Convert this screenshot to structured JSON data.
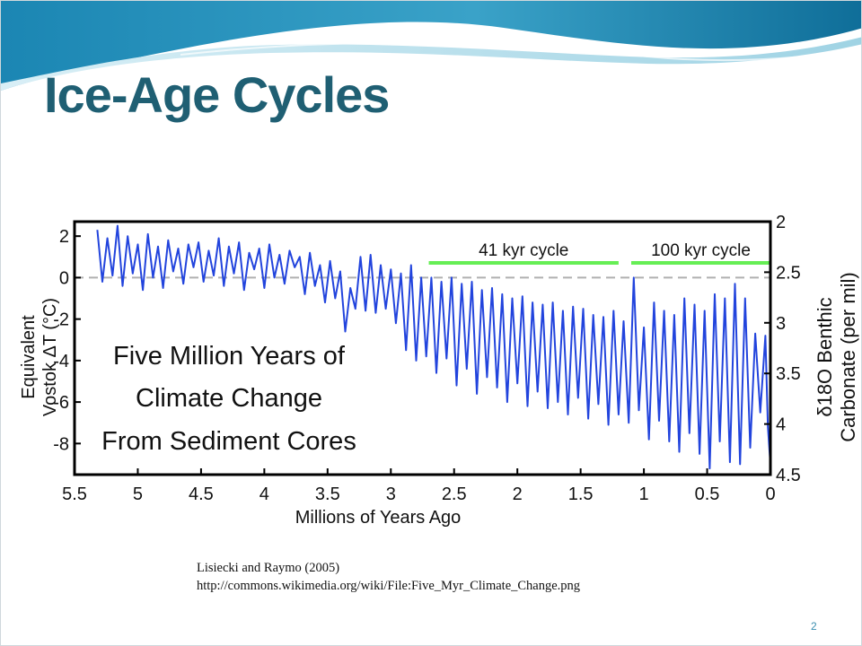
{
  "slide": {
    "title": "Ice-Age Cycles",
    "credit_line1": "Lisiecki and Raymo (2005)",
    "credit_line2": "http://commons.wikimedia.org/wiki/File:Five_Myr_Climate_Change.png",
    "page_number": "2",
    "colors": {
      "title": "#1f5f73",
      "header_wave": "#1b86b3",
      "header_light": "#bfe3ee"
    }
  },
  "chart_data": {
    "type": "line",
    "title_lines": [
      "Five Million Years of",
      "Climate Change",
      "From Sediment Cores"
    ],
    "xlabel": "Millions of Years Ago",
    "ylabel_left_lines": [
      "Equivalent",
      "Vostok ΔT (°C)"
    ],
    "ylabel_right_lines": [
      "δ18O Benthic",
      "Carbonate (per mil)"
    ],
    "xlim": [
      5.5,
      0
    ],
    "ylim_left": [
      -9.5,
      2.7
    ],
    "ylim_right": [
      4.5,
      2
    ],
    "x_ticks": [
      "5.5",
      "5",
      "4.5",
      "4",
      "3.5",
      "3",
      "2.5",
      "2",
      "1.5",
      "1",
      "0.5",
      "0"
    ],
    "y_left_ticks": [
      "2",
      "0",
      "-2",
      "-4",
      "-6",
      "-8"
    ],
    "y_right_ticks": [
      "2",
      "2.5",
      "3",
      "3.5",
      "4",
      "4.5"
    ],
    "reference_line": {
      "y": 0,
      "style": "dashed",
      "color": "#b0b0b0"
    },
    "annotations": [
      {
        "label": "41 kyr cycle",
        "x_start": 2.7,
        "x_end": 1.2,
        "color": "#66ee55"
      },
      {
        "label": "100 kyr cycle",
        "x_start": 1.1,
        "x_end": 0,
        "color": "#66ee55"
      }
    ],
    "series": [
      {
        "color": "#2244dd",
        "x": [
          5.32,
          5.28,
          5.24,
          5.2,
          5.16,
          5.12,
          5.08,
          5.04,
          5.0,
          4.96,
          4.92,
          4.88,
          4.84,
          4.8,
          4.76,
          4.72,
          4.68,
          4.64,
          4.6,
          4.56,
          4.52,
          4.48,
          4.44,
          4.4,
          4.36,
          4.32,
          4.28,
          4.24,
          4.2,
          4.16,
          4.12,
          4.08,
          4.04,
          4.0,
          3.96,
          3.92,
          3.88,
          3.84,
          3.8,
          3.76,
          3.72,
          3.68,
          3.64,
          3.6,
          3.56,
          3.52,
          3.48,
          3.44,
          3.4,
          3.36,
          3.32,
          3.28,
          3.24,
          3.2,
          3.16,
          3.12,
          3.08,
          3.04,
          3.0,
          2.96,
          2.92,
          2.88,
          2.84,
          2.8,
          2.76,
          2.72,
          2.68,
          2.64,
          2.6,
          2.56,
          2.52,
          2.48,
          2.44,
          2.4,
          2.36,
          2.32,
          2.28,
          2.24,
          2.2,
          2.16,
          2.12,
          2.08,
          2.04,
          2.0,
          1.96,
          1.92,
          1.88,
          1.84,
          1.8,
          1.76,
          1.72,
          1.68,
          1.64,
          1.6,
          1.56,
          1.52,
          1.48,
          1.44,
          1.4,
          1.36,
          1.32,
          1.28,
          1.24,
          1.2,
          1.16,
          1.12,
          1.08,
          1.04,
          1.0,
          0.96,
          0.92,
          0.88,
          0.84,
          0.8,
          0.76,
          0.72,
          0.68,
          0.64,
          0.6,
          0.56,
          0.52,
          0.48,
          0.44,
          0.4,
          0.36,
          0.32,
          0.28,
          0.24,
          0.2,
          0.16,
          0.12,
          0.08,
          0.04,
          0.02,
          0.0
        ],
        "y": [
          2.3,
          -0.2,
          1.9,
          0.1,
          2.5,
          -0.4,
          2.0,
          0.2,
          1.6,
          -0.6,
          2.1,
          0.0,
          1.5,
          -0.5,
          1.8,
          0.3,
          1.4,
          -0.3,
          1.6,
          0.5,
          1.7,
          -0.2,
          1.3,
          0.1,
          1.9,
          -0.4,
          1.5,
          0.2,
          1.7,
          -0.6,
          1.2,
          0.4,
          1.4,
          -0.5,
          1.6,
          0.0,
          1.1,
          -0.3,
          1.3,
          0.5,
          1.0,
          -0.8,
          1.2,
          -0.4,
          0.6,
          -1.2,
          0.8,
          -1.0,
          0.3,
          -2.6,
          -0.5,
          -1.5,
          1.0,
          -1.6,
          1.1,
          -1.7,
          0.6,
          -1.5,
          0.4,
          -2.2,
          0.2,
          -3.5,
          0.6,
          -4.0,
          0.0,
          -3.8,
          0.0,
          -4.6,
          -0.2,
          -3.9,
          0.0,
          -5.2,
          -0.3,
          -4.4,
          -0.2,
          -5.6,
          -0.6,
          -4.8,
          -0.5,
          -5.3,
          -0.8,
          -6.0,
          -1.0,
          -5.1,
          -0.9,
          -6.2,
          -1.2,
          -5.5,
          -1.3,
          -6.3,
          -1.2,
          -6.0,
          -1.6,
          -6.6,
          -1.4,
          -5.8,
          -1.5,
          -6.8,
          -1.8,
          -6.1,
          -1.9,
          -7.1,
          -1.6,
          -6.6,
          -2.1,
          -7.0,
          0.0,
          -6.4,
          -2.4,
          -7.8,
          -1.2,
          -6.9,
          -1.6,
          -7.9,
          -1.8,
          -8.4,
          -1.0,
          -7.5,
          -1.3,
          -8.5,
          -1.6,
          -9.2,
          -0.8,
          -7.9,
          -1.0,
          -8.9,
          -0.3,
          -9.0,
          -1.0,
          -8.2,
          -2.7,
          -6.5,
          -2.8,
          -7.2,
          -9.0
        ]
      }
    ]
  }
}
